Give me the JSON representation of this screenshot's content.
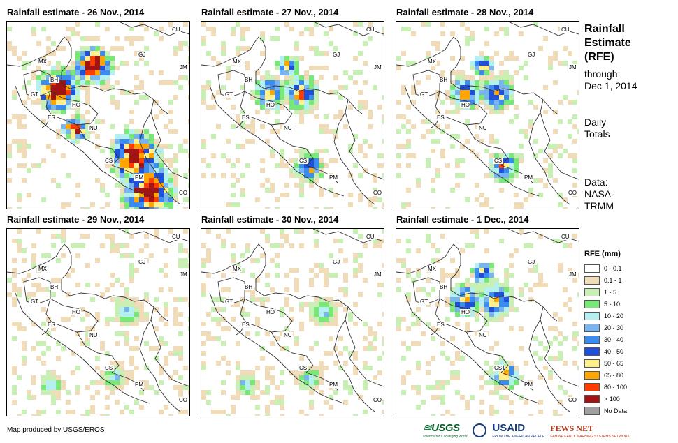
{
  "panels": [
    {
      "title": "Rainfall estimate - 26 Nov., 2014",
      "intensity": "high"
    },
    {
      "title": "Rainfall estimate - 27 Nov., 2014",
      "intensity": "medium"
    },
    {
      "title": "Rainfall estimate - 28 Nov., 2014",
      "intensity": "medium"
    },
    {
      "title": "Rainfall estimate - 29 Nov., 2014",
      "intensity": "low"
    },
    {
      "title": "Rainfall estimate - 30 Nov., 2014",
      "intensity": "low"
    },
    {
      "title": "Rainfall estimate - 1 Dec., 2014",
      "intensity": "medium"
    }
  ],
  "country_labels": [
    "CU",
    "MX",
    "BH",
    "GJ",
    "JM",
    "GT",
    "HO",
    "ES",
    "NU",
    "CS",
    "PM",
    "CO"
  ],
  "sidebar": {
    "title_line1": "Rainfall",
    "title_line2": "Estimate",
    "title_line3": "(RFE)",
    "through_label": "through:",
    "through_date": "Dec 1, 2014",
    "daily_line1": "Daily",
    "daily_line2": "Totals",
    "data_line1": "Data:",
    "data_line2": "NASA-",
    "data_line3": "TRMM"
  },
  "legend": {
    "title": "RFE (mm)",
    "items": [
      {
        "label": "0 - 0.1",
        "color": "#ffffff"
      },
      {
        "label": "0.1 - 1",
        "color": "#f0dcb8"
      },
      {
        "label": "1 - 5",
        "color": "#c8f0b4"
      },
      {
        "label": "5 - 10",
        "color": "#78e878"
      },
      {
        "label": "10 - 20",
        "color": "#b4f0f0"
      },
      {
        "label": "20 - 30",
        "color": "#78b4f0"
      },
      {
        "label": "30 - 40",
        "color": "#3c8cf0"
      },
      {
        "label": "40 - 50",
        "color": "#1e50dc"
      },
      {
        "label": "50 - 65",
        "color": "#fff08c"
      },
      {
        "label": "65 - 80",
        "color": "#ffa500"
      },
      {
        "label": "80 - 100",
        "color": "#ff3c00"
      },
      {
        "label": "> 100",
        "color": "#a01414"
      },
      {
        "label": "No Data",
        "color": "#a0a0a0"
      }
    ]
  },
  "footer": "Map produced by USGS/EROS",
  "logos": {
    "usgs": "≊USGS",
    "usgs_tag": "science for a changing world",
    "usaid": "USAID",
    "usaid_tag": "FROM THE AMERICAN PEOPLE",
    "fews": "FEWS NET",
    "fews_tag": "FAMINE EARLY WARNING SYSTEMS NETWORK"
  }
}
